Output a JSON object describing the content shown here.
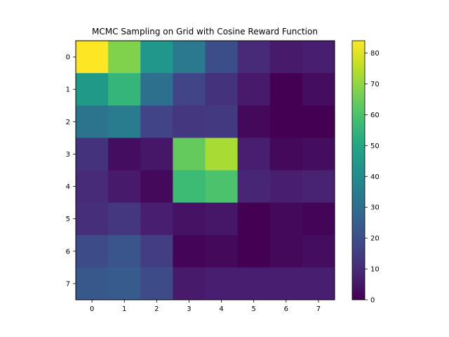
{
  "chart_data": {
    "type": "heatmap",
    "title": "MCMC Sampling on Grid with Cosine Reward Function",
    "xlabel": "",
    "ylabel": "",
    "x_ticks": [
      "0",
      "1",
      "2",
      "3",
      "4",
      "5",
      "6",
      "7"
    ],
    "y_ticks": [
      "0",
      "1",
      "2",
      "3",
      "4",
      "5",
      "6",
      "7"
    ],
    "values": [
      [
        84,
        68,
        44,
        34,
        20,
        10,
        6,
        7
      ],
      [
        45,
        55,
        31,
        17,
        12,
        6,
        0,
        3
      ],
      [
        32,
        35,
        17,
        13,
        14,
        2,
        0,
        0
      ],
      [
        12,
        3,
        5,
        64,
        73,
        7,
        2,
        3
      ],
      [
        10,
        6,
        2,
        57,
        60,
        9,
        7,
        8
      ],
      [
        11,
        13,
        7,
        4,
        5,
        0,
        2,
        1
      ],
      [
        19,
        22,
        15,
        1,
        2,
        0,
        2,
        3
      ],
      [
        23,
        24,
        19,
        6,
        7,
        7,
        7,
        7
      ]
    ],
    "colormap": "viridis",
    "colorbar": {
      "min": 0,
      "max": 84,
      "ticks": [
        "0",
        "10",
        "20",
        "30",
        "40",
        "50",
        "60",
        "70",
        "80"
      ]
    },
    "grid": false
  }
}
